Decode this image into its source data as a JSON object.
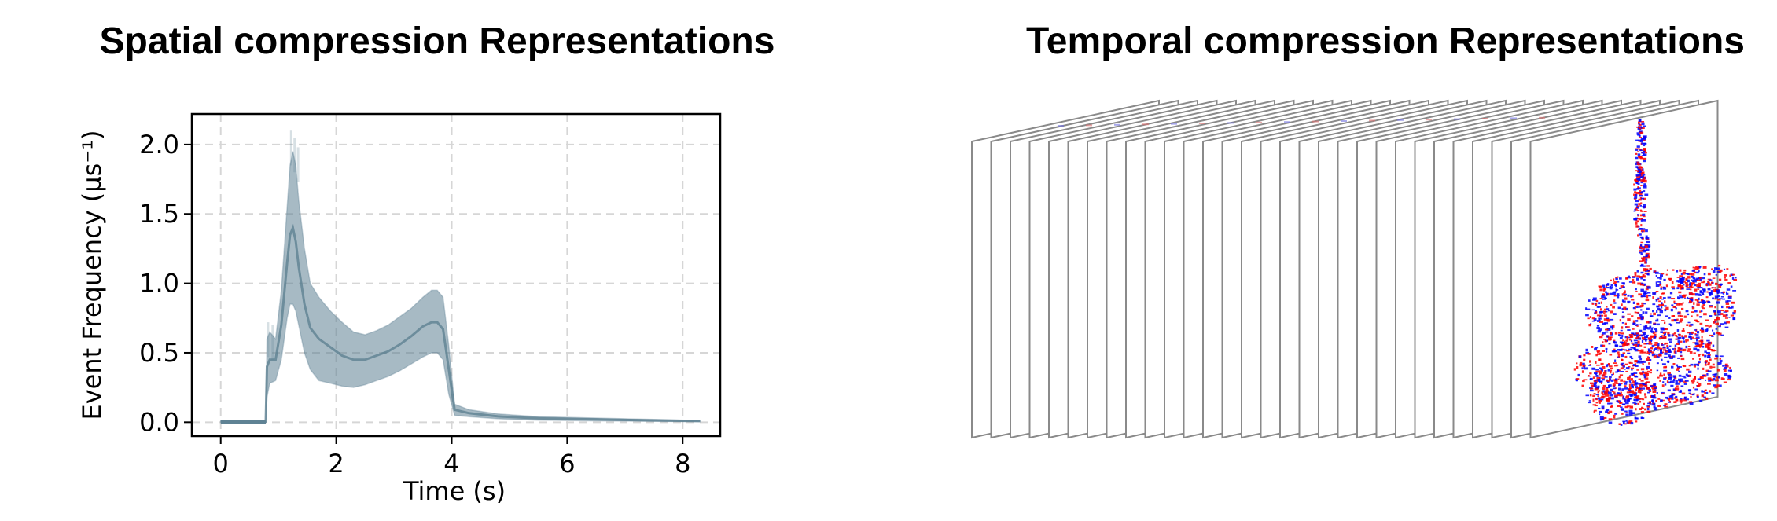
{
  "left_panel": {
    "title": "Spatial compression Representations"
  },
  "right_panel": {
    "title": "Temporal compression Representations",
    "frame_count": 30,
    "colors": {
      "frame_border": "#8a8a8a",
      "positive": "#ff0000",
      "negative": "#0000ff"
    }
  },
  "chart_data": {
    "type": "area",
    "xlabel": "Time (s)",
    "ylabel": "Event Frequency (μs⁻¹)",
    "xlim": [
      -0.5,
      8.65
    ],
    "ylim": [
      -0.1,
      2.22
    ],
    "xticks": [
      0,
      2,
      4,
      6,
      8
    ],
    "xtick_labels": [
      "0",
      "2",
      "4",
      "6",
      "8"
    ],
    "yticks": [
      0.0,
      0.5,
      1.0,
      1.5,
      2.0
    ],
    "ytick_labels": [
      "0.0",
      "0.5",
      "1.0",
      "1.5",
      "2.0"
    ],
    "grid": true,
    "grid_style": "dashed",
    "band_color": "#5f8294",
    "x": [
      0,
      0.78,
      0.8,
      0.85,
      0.95,
      1.05,
      1.15,
      1.2,
      1.25,
      1.3,
      1.35,
      1.45,
      1.55,
      1.7,
      1.9,
      2.1,
      2.3,
      2.5,
      2.7,
      2.9,
      3.1,
      3.3,
      3.5,
      3.65,
      3.75,
      3.85,
      3.95,
      4.05,
      4.3,
      4.8,
      5.5,
      6.5,
      7.5,
      8.3
    ],
    "lower": [
      0,
      0,
      0.18,
      0.28,
      0.3,
      0.45,
      0.75,
      0.85,
      0.85,
      0.8,
      0.7,
      0.5,
      0.38,
      0.3,
      0.28,
      0.26,
      0.25,
      0.27,
      0.3,
      0.33,
      0.37,
      0.42,
      0.47,
      0.5,
      0.5,
      0.45,
      0.2,
      0.05,
      0.04,
      0.025,
      0.015,
      0.01,
      0.006,
      0.004
    ],
    "upper": [
      0.01,
      0.01,
      0.6,
      0.65,
      0.6,
      0.95,
      1.55,
      1.85,
      1.95,
      1.85,
      1.6,
      1.25,
      1.0,
      0.9,
      0.8,
      0.72,
      0.65,
      0.63,
      0.66,
      0.7,
      0.76,
      0.82,
      0.9,
      0.95,
      0.95,
      0.9,
      0.55,
      0.13,
      0.09,
      0.06,
      0.04,
      0.03,
      0.02,
      0.012
    ],
    "mean": [
      0.005,
      0.005,
      0.4,
      0.45,
      0.45,
      0.7,
      1.15,
      1.35,
      1.4,
      1.3,
      1.12,
      0.85,
      0.68,
      0.6,
      0.54,
      0.48,
      0.45,
      0.45,
      0.48,
      0.51,
      0.56,
      0.62,
      0.69,
      0.72,
      0.72,
      0.67,
      0.38,
      0.09,
      0.065,
      0.042,
      0.028,
      0.02,
      0.013,
      0.008
    ]
  }
}
